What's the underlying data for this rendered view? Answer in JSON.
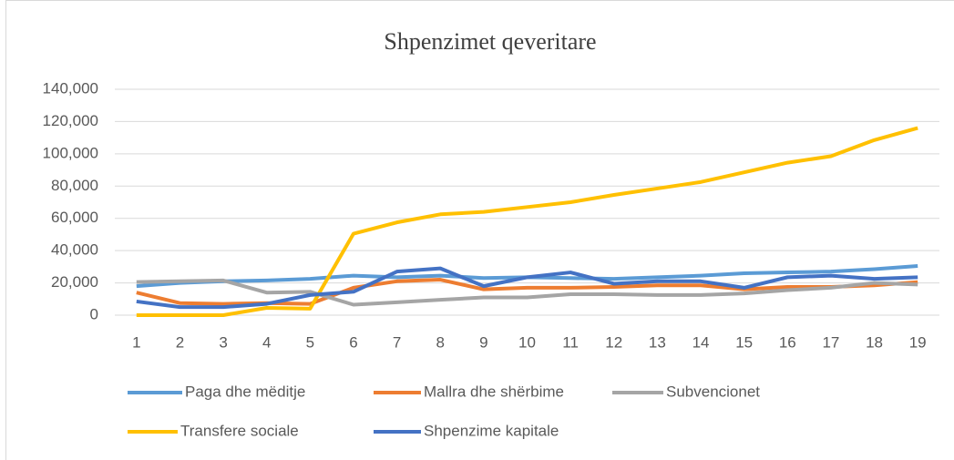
{
  "chart_data": {
    "type": "line",
    "title": "Shpenzimet qeveritare",
    "categories": [
      "1",
      "2",
      "3",
      "4",
      "5",
      "6",
      "7",
      "8",
      "9",
      "10",
      "11",
      "12",
      "13",
      "14",
      "15",
      "16",
      "17",
      "18",
      "19"
    ],
    "series": [
      {
        "name": "Paga dhe mëditje",
        "color": "#5b9bd5",
        "values": [
          18000,
          20000,
          21000,
          21500,
          22500,
          24500,
          23500,
          24500,
          23000,
          23500,
          23000,
          22500,
          23500,
          24500,
          26000,
          26500,
          27000,
          28500,
          30500
        ]
      },
      {
        "name": "Mallra dhe shërbime",
        "color": "#ed7d31",
        "values": [
          14000,
          7500,
          7000,
          7500,
          7000,
          17000,
          21000,
          22000,
          16000,
          17000,
          17000,
          17500,
          18500,
          18500,
          16000,
          17500,
          17500,
          18500,
          20500
        ]
      },
      {
        "name": "Subvencionet",
        "color": "#a5a5a5",
        "values": [
          20500,
          21000,
          21500,
          14000,
          14500,
          6500,
          8000,
          9500,
          11000,
          11000,
          13000,
          13000,
          12500,
          12500,
          13500,
          15500,
          17000,
          20000,
          19000
        ]
      },
      {
        "name": "Transfere sociale",
        "color": "#ffc000",
        "values": [
          0,
          0,
          0,
          4500,
          4000,
          50500,
          57500,
          62500,
          64000,
          67000,
          70000,
          74500,
          78500,
          82500,
          88500,
          94500,
          98500,
          108500,
          116000
        ]
      },
      {
        "name": "Shpenzime kapitale",
        "color": "#4472c4",
        "values": [
          8500,
          5000,
          5000,
          7000,
          12500,
          14500,
          27000,
          29000,
          18000,
          23500,
          26500,
          19500,
          21000,
          21000,
          17000,
          23500,
          24500,
          22500,
          23500
        ]
      }
    ],
    "ylim": [
      0,
      140000
    ],
    "yticks": [
      0,
      {
        "value": 20000,
        "label": "20,000"
      },
      {
        "value": 40000,
        "label": "40,000"
      },
      {
        "value": 60000,
        "label": "60,000"
      },
      {
        "value": 80000,
        "label": "80,000"
      },
      {
        "value": 100000,
        "label": "100,000"
      },
      {
        "value": 120000,
        "label": "120,000"
      },
      {
        "value": 140000,
        "label": "140,000"
      }
    ],
    "grid": true,
    "legend": "bottom"
  }
}
